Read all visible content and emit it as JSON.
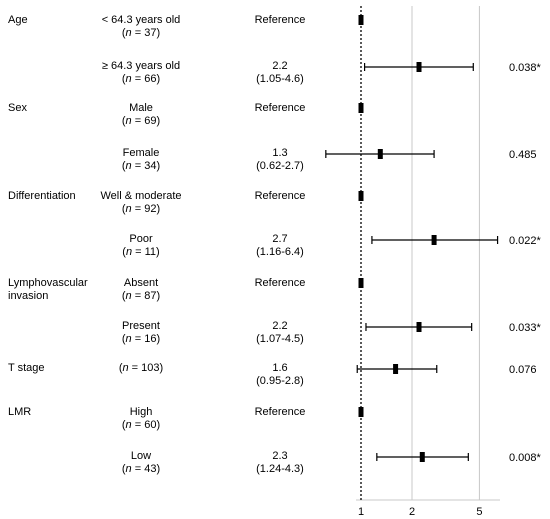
{
  "chart_data": {
    "type": "forest",
    "x_scale": "log",
    "xlim": [
      0.5,
      7
    ],
    "x_ticks": [
      "1",
      "2",
      "5"
    ],
    "reference_line": 1,
    "grid": "vertical",
    "rows": [
      {
        "variable": "Age",
        "group": "< 64.3 years old",
        "n": "37",
        "hr_text": "Reference",
        "ci_text": "",
        "hr": 1,
        "lo": null,
        "hi": null,
        "p": ""
      },
      {
        "variable": "",
        "group": "≥ 64.3 years old",
        "n": "66",
        "hr_text": "2.2",
        "ci_text": "(1.05-4.6)",
        "hr": 2.2,
        "lo": 1.05,
        "hi": 4.6,
        "p": "0.038*"
      },
      {
        "variable": "Sex",
        "group": "Male",
        "n": "69",
        "hr_text": "Reference",
        "ci_text": "",
        "hr": 1,
        "lo": null,
        "hi": null,
        "p": ""
      },
      {
        "variable": "",
        "group": "Female",
        "n": "34",
        "hr_text": "1.3",
        "ci_text": "(0.62-2.7)",
        "hr": 1.3,
        "lo": 0.62,
        "hi": 2.7,
        "p": "0.485"
      },
      {
        "variable": "Differentiation",
        "group": "Well & moderate",
        "n": "92",
        "hr_text": "Reference",
        "ci_text": "",
        "hr": 1,
        "lo": null,
        "hi": null,
        "p": ""
      },
      {
        "variable": "",
        "group": "Poor",
        "n": "11",
        "hr_text": "2.7",
        "ci_text": "(1.16-6.4)",
        "hr": 2.7,
        "lo": 1.16,
        "hi": 6.4,
        "p": "0.022*"
      },
      {
        "variable": "Lymphovascular",
        "variable_line2": "invasion",
        "group": "Absent",
        "n": "87",
        "hr_text": "Reference",
        "ci_text": "",
        "hr": 1,
        "lo": null,
        "hi": null,
        "p": ""
      },
      {
        "variable": "",
        "group": "Present",
        "n": "16",
        "hr_text": "2.2",
        "ci_text": "(1.07-4.5)",
        "hr": 2.2,
        "lo": 1.07,
        "hi": 4.5,
        "p": "0.033*"
      },
      {
        "variable": "T stage",
        "group": "",
        "n": "103",
        "hr_text": "1.6",
        "ci_text": "(0.95-2.8)",
        "hr": 1.6,
        "lo": 0.95,
        "hi": 2.8,
        "p": "0.076"
      },
      {
        "variable": "LMR",
        "group": "High",
        "n": "60",
        "hr_text": "Reference",
        "ci_text": "",
        "hr": 1,
        "lo": null,
        "hi": null,
        "p": ""
      },
      {
        "variable": "",
        "group": "Low",
        "n": "43",
        "hr_text": "2.3",
        "ci_text": "(1.24-4.3)",
        "hr": 2.3,
        "lo": 1.24,
        "hi": 4.3,
        "p": "0.008*"
      }
    ]
  }
}
